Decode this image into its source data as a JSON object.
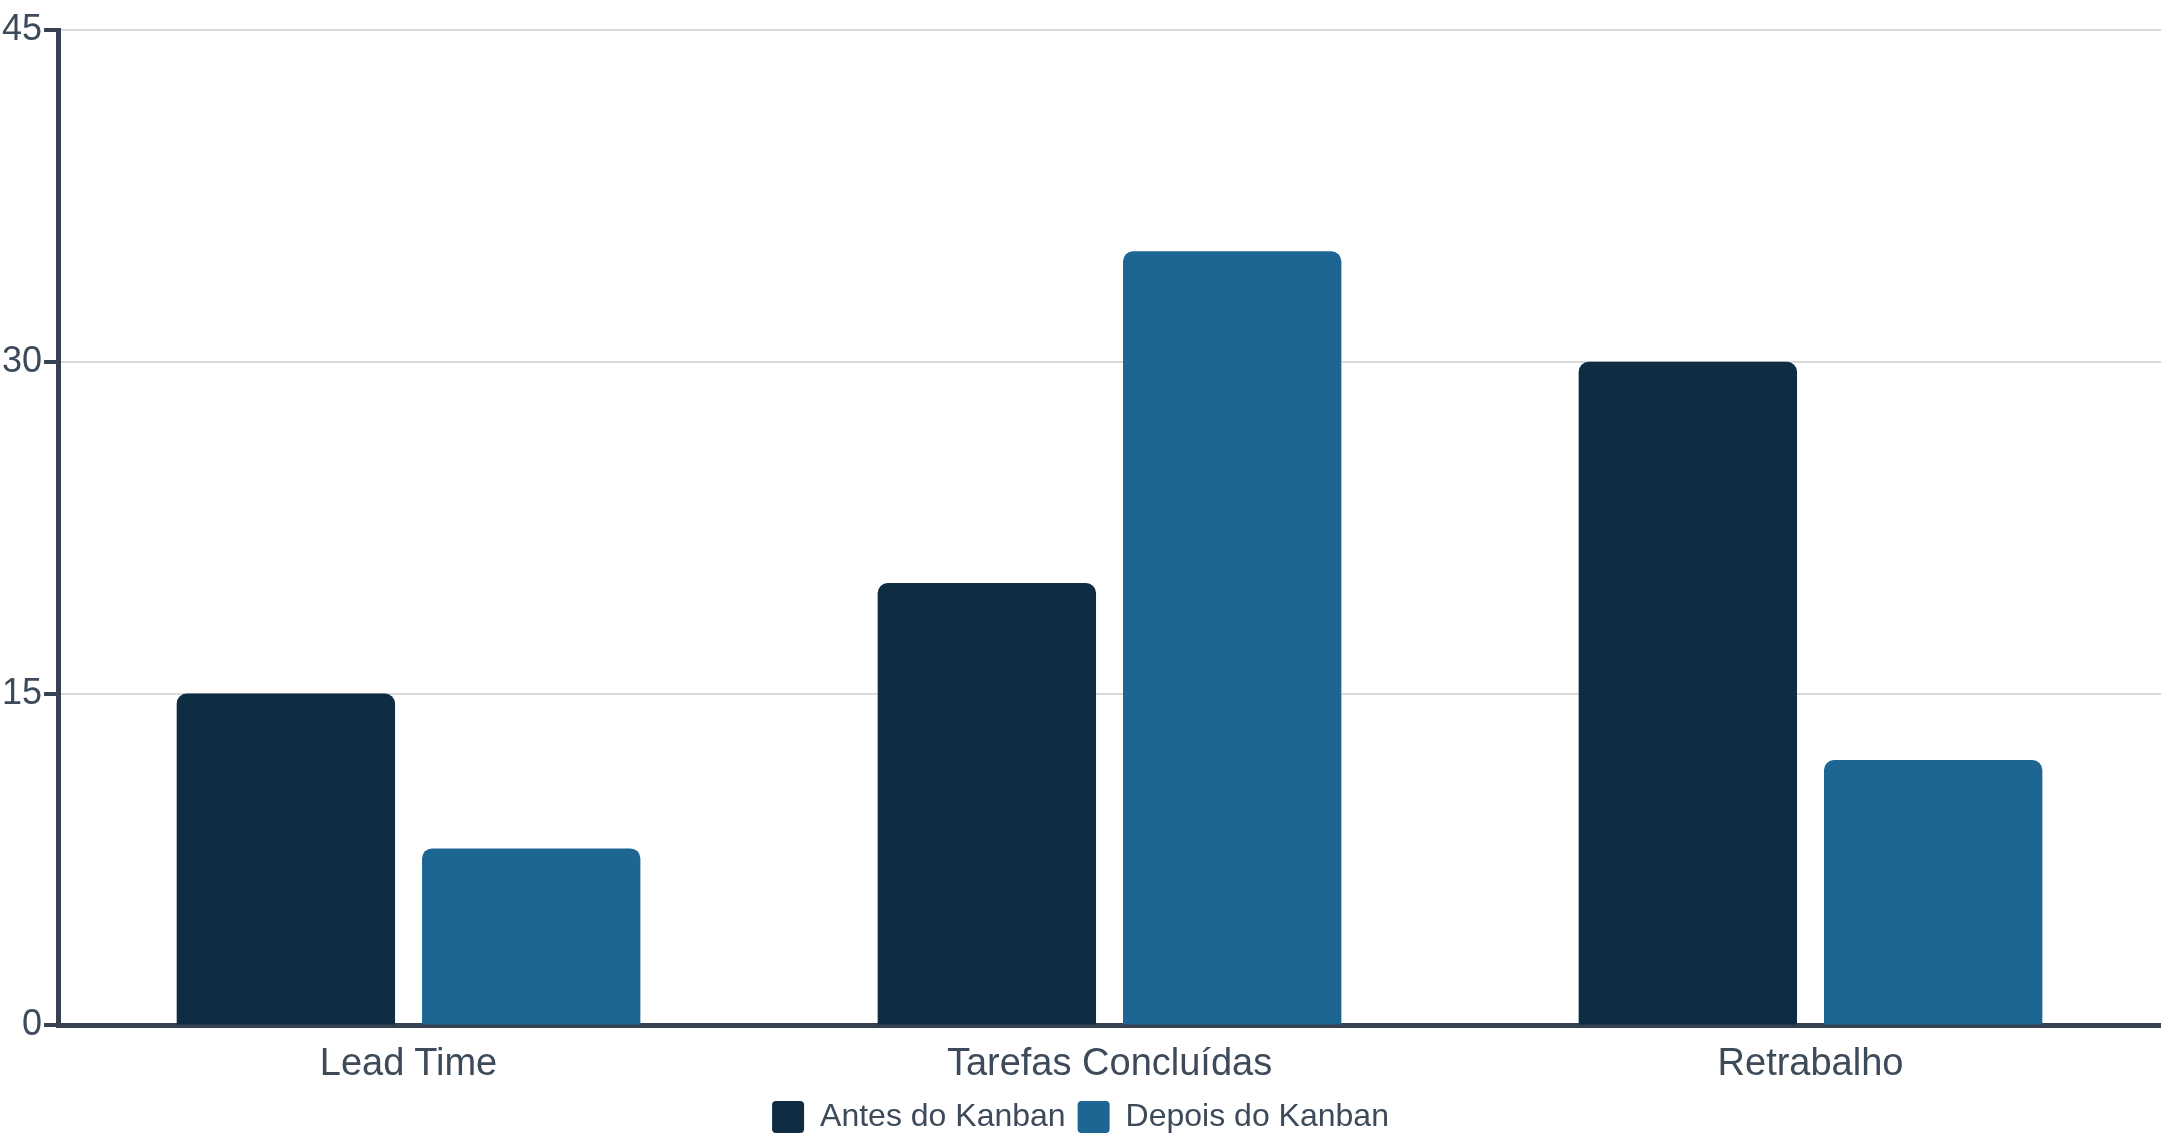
{
  "chart_data": {
    "type": "bar",
    "categories": [
      "Lead Time",
      "Tarefas Concluídas",
      "Retrabalho"
    ],
    "series": [
      {
        "name": "Antes do Kanban",
        "color": "#0f2d42",
        "values": [
          15,
          20,
          30
        ]
      },
      {
        "name": "Depois do Kanban",
        "color": "#1d6593",
        "values": [
          8,
          35,
          12
        ]
      }
    ],
    "ylim": [
      0,
      45
    ],
    "yticks": [
      0,
      15,
      30,
      45
    ],
    "grid": "y",
    "legend": "bottom"
  }
}
